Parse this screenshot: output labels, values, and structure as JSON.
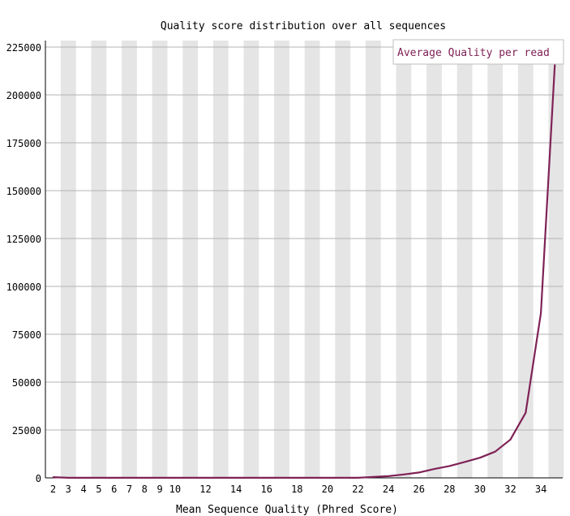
{
  "chart_data": {
    "type": "line",
    "title": "Quality score distribution over all sequences",
    "xlabel": "Mean Sequence Quality (Phred Score)",
    "ylabel": "",
    "legend": {
      "placement": "top-right",
      "entries": [
        "Average Quality per read"
      ]
    },
    "grid": {
      "horizontal": true,
      "alternating_vertical_bands": true
    },
    "xlim": [
      2,
      35
    ],
    "ylim": [
      0,
      225000
    ],
    "x_tick_labels": [
      "2",
      "3",
      "4",
      "5",
      "6",
      "7",
      "8",
      "9",
      "10",
      "12",
      "14",
      "16",
      "18",
      "20",
      "22",
      "24",
      "26",
      "28",
      "30",
      "32",
      "34"
    ],
    "y_ticks": [
      0,
      25000,
      50000,
      75000,
      100000,
      125000,
      150000,
      175000,
      200000,
      225000
    ],
    "series": [
      {
        "name": "Average Quality per read",
        "color": "#7f2256",
        "x": [
          2,
          3,
          4,
          5,
          6,
          7,
          8,
          9,
          10,
          11,
          12,
          13,
          14,
          15,
          16,
          17,
          18,
          19,
          20,
          21,
          22,
          23,
          24,
          25,
          26,
          27,
          28,
          29,
          30,
          31,
          32,
          33,
          34,
          35
        ],
        "values": [
          400,
          50,
          50,
          50,
          50,
          50,
          50,
          50,
          50,
          50,
          50,
          50,
          50,
          50,
          50,
          50,
          50,
          50,
          50,
          50,
          50,
          500,
          900,
          1800,
          2800,
          4600,
          6200,
          8300,
          10500,
          13700,
          20000,
          34000,
          86000,
          228000
        ]
      }
    ]
  }
}
